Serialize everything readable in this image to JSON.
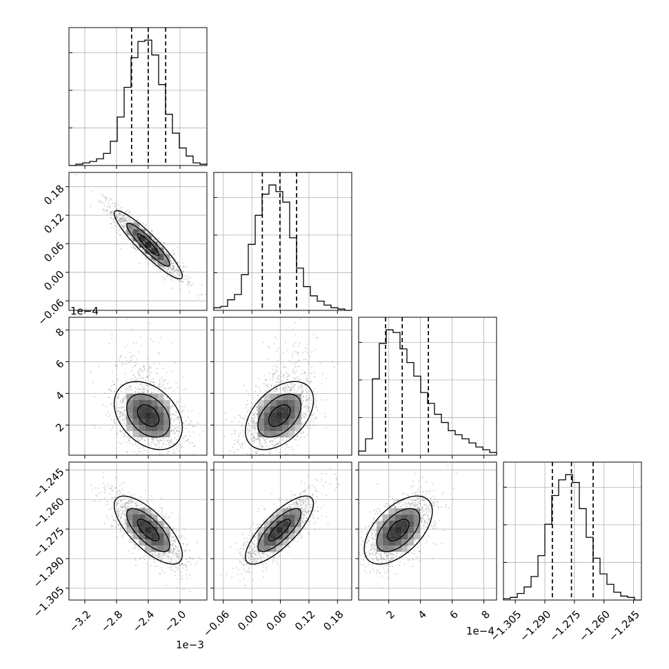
{
  "chart_data": {
    "type": "corner",
    "title": "",
    "parameters": [
      {
        "range": [
          -3.4,
          -1.66
        ],
        "ticks": [
          -3.2,
          -2.8,
          -2.4,
          -2.0
        ],
        "tick_labels": [
          "−3.2",
          "−2.8",
          "−2.4",
          "−2.0"
        ],
        "offset_label": "1e−3"
      },
      {
        "range": [
          -0.08,
          0.21
        ],
        "ticks": [
          -0.06,
          0.0,
          0.06,
          0.12,
          0.18
        ],
        "tick_labels": [
          "−0.06",
          "0.00",
          "0.06",
          "0.12",
          "0.18"
        ],
        "offset_label": ""
      },
      {
        "range": [
          0.1,
          8.8
        ],
        "ticks": [
          2,
          4,
          6,
          8
        ],
        "tick_labels": [
          "2",
          "4",
          "6",
          "8"
        ],
        "offset_label": "1e−4"
      },
      {
        "range": [
          -1.311,
          -1.241
        ],
        "ticks": [
          -1.305,
          -1.29,
          -1.275,
          -1.26,
          -1.245
        ],
        "tick_labels": [
          "−1.305",
          "−1.290",
          "−1.275",
          "−1.260",
          "−1.245"
        ],
        "offset_label": ""
      }
    ],
    "histograms": [
      {
        "edges_start": -3.4,
        "bin_width": 0.087,
        "counts": [
          0,
          1,
          2,
          3,
          5,
          9,
          18,
          36,
          58,
          80,
          92,
          93,
          82,
          60,
          38,
          24,
          13,
          7,
          2,
          1
        ],
        "quantiles": [
          -2.61,
          -2.4,
          -2.18
        ]
      },
      {
        "edges_start": -0.08,
        "bin_width": 0.0145,
        "counts": [
          2,
          3,
          8,
          12,
          27,
          50,
          72,
          88,
          95,
          90,
          82,
          55,
          32,
          18,
          11,
          7,
          4,
          2,
          1,
          0
        ],
        "quantiles": [
          0.022,
          0.059,
          0.094
        ]
      },
      {
        "edges_start": 0.1,
        "bin_width": 0.435,
        "counts": [
          3,
          12,
          56,
          82,
          92,
          90,
          78,
          68,
          58,
          46,
          38,
          30,
          24,
          18,
          15,
          12,
          9,
          6,
          4,
          2
        ],
        "quantiles": [
          1.8,
          2.85,
          4.5
        ]
      },
      {
        "edges_start": -1.311,
        "bin_width": 0.0035,
        "counts": [
          1,
          2,
          5,
          10,
          18,
          34,
          58,
          80,
          92,
          96,
          90,
          70,
          48,
          32,
          20,
          12,
          6,
          3,
          2,
          0
        ],
        "quantiles": [
          -1.2862,
          -1.2765,
          -1.2655
        ]
      }
    ],
    "pairs": [
      {
        "row": 1,
        "col": 0,
        "center": [
          -2.4,
          0.058
        ],
        "corr": -0.92
      },
      {
        "row": 2,
        "col": 0,
        "center": [
          -2.4,
          2.6
        ],
        "corr": -0.35
      },
      {
        "row": 2,
        "col": 1,
        "center": [
          0.058,
          2.6
        ],
        "corr": 0.45
      },
      {
        "row": 3,
        "col": 0,
        "center": [
          -2.4,
          -1.2755
        ],
        "corr": -0.72
      },
      {
        "row": 3,
        "col": 1,
        "center": [
          0.058,
          -1.2755
        ],
        "corr": 0.78
      },
      {
        "row": 3,
        "col": 2,
        "center": [
          2.6,
          -1.2755
        ],
        "corr": 0.55
      }
    ],
    "grid": true,
    "colors": {
      "line": "#000000",
      "grid": "#b0b0b0",
      "points": "#808080",
      "density": "#000000"
    }
  }
}
